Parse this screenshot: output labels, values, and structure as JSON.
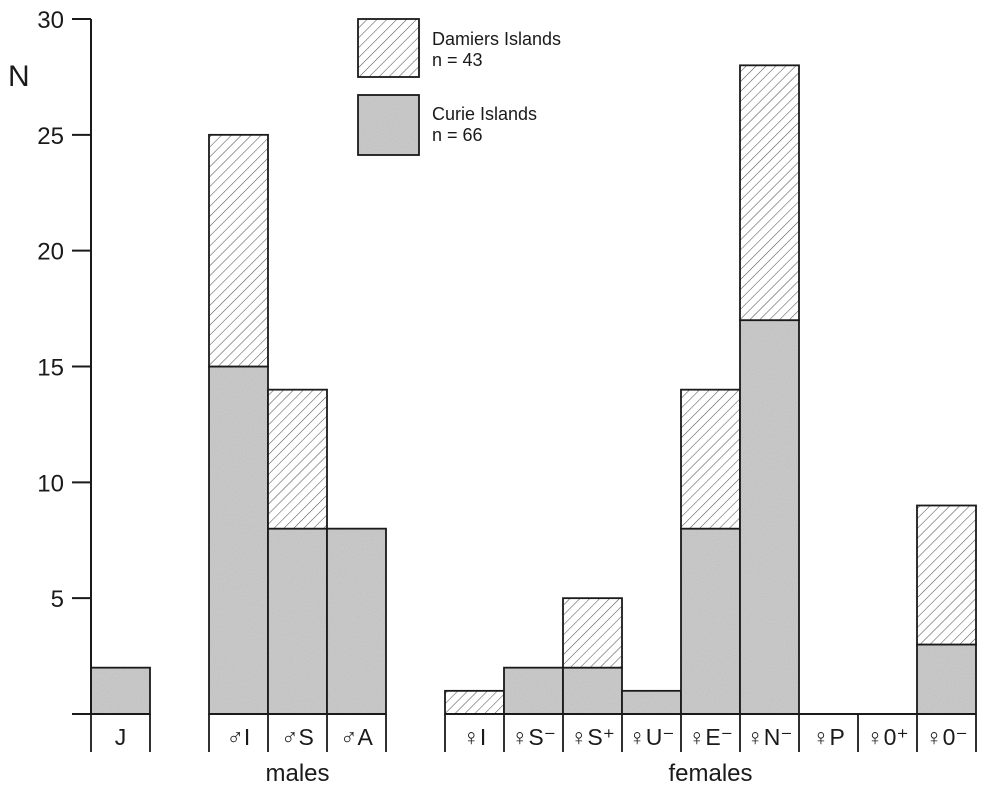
{
  "chart_data": {
    "type": "bar",
    "stacked": true,
    "ylabel": "N",
    "ylim": [
      0,
      30
    ],
    "yticks": [
      "5",
      "10",
      "15",
      "20",
      "25",
      "30"
    ],
    "categories": [
      "J",
      "♂I",
      "♂S",
      "♂A",
      "♀I",
      "♀S⁻",
      "♀S⁺",
      "♀U⁻",
      "♀E⁻",
      "♀N⁻",
      "♀P",
      "♀0⁺",
      "♀0⁻"
    ],
    "groups": [
      {
        "label": "",
        "categories": [
          "J"
        ]
      },
      {
        "label": "males",
        "categories": [
          "♂I",
          "♂S",
          "♂A"
        ]
      },
      {
        "label": "females",
        "categories": [
          "♀I",
          "♀S⁻",
          "♀S⁺",
          "♀U⁻",
          "♀E⁻",
          "♀N⁻",
          "♀P",
          "♀0⁺",
          "♀0⁻"
        ]
      }
    ],
    "series": [
      {
        "name": "Curie Islands",
        "n_label": "n = 66",
        "pattern": "stipple-gray",
        "values": [
          2,
          15,
          8,
          8,
          0,
          2,
          2,
          1,
          8,
          17,
          0,
          0,
          3
        ]
      },
      {
        "name": "Damiers Islands",
        "n_label": "n = 43",
        "pattern": "diagonal-hatch",
        "values": [
          0,
          10,
          6,
          0,
          1,
          0,
          3,
          0,
          6,
          11,
          0,
          0,
          6
        ]
      }
    ],
    "legend": "top-center",
    "grid": false,
    "colors": {
      "fill": "#bdbdbd",
      "hatch": "#555555",
      "stroke": "#1a1a1a",
      "background": "#ffffff"
    }
  }
}
